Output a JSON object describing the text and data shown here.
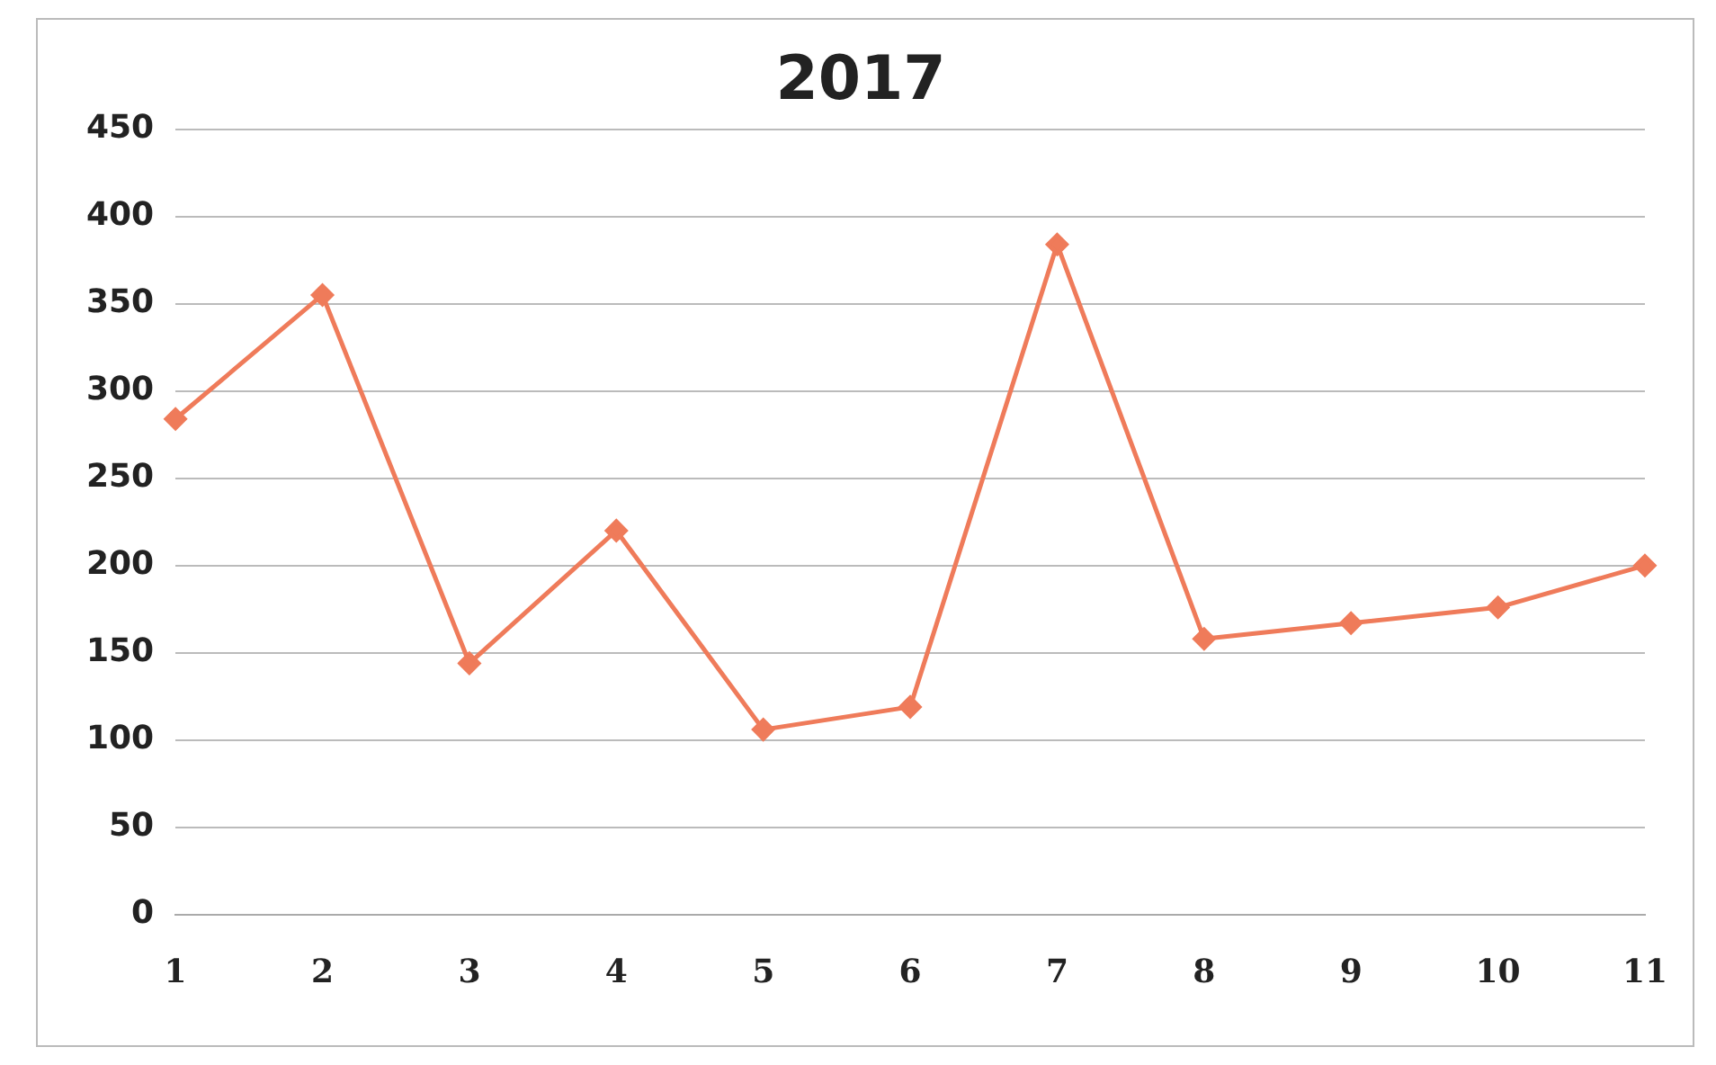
{
  "chart_data": {
    "type": "line",
    "title": "2017",
    "categories": [
      "1",
      "2",
      "3",
      "4",
      "5",
      "6",
      "7",
      "8",
      "9",
      "10",
      "11"
    ],
    "series": [
      {
        "color": "#ef7b5a",
        "values": [
          284,
          355,
          144,
          220,
          106,
          119,
          384,
          158,
          167,
          176,
          200
        ]
      }
    ],
    "ylim": [
      0,
      450
    ],
    "yticks": [
      0,
      50,
      100,
      150,
      200,
      250,
      300,
      350,
      400,
      450
    ],
    "grid": "y",
    "legend": false,
    "marker": "diamond",
    "line_style": "solid"
  }
}
